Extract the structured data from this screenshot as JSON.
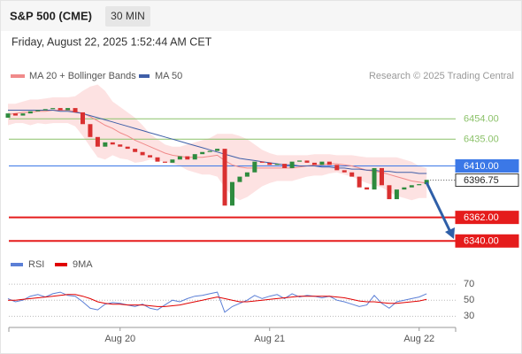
{
  "chart_data": {
    "type": "candlestick",
    "title": "S&P 500 (CME)",
    "interval": "30 MIN",
    "subtitle": "Friday, August 22, 2025 1:52:44 AM CET",
    "source": "Research © 2025 Trading Central",
    "categories": [
      null,
      null,
      null,
      null,
      null,
      null,
      null,
      null,
      null,
      null,
      null,
      null,
      null,
      null,
      null,
      "Aug 20",
      null,
      null,
      null,
      null,
      null,
      null,
      null,
      null,
      null,
      null,
      null,
      null,
      null,
      null,
      null,
      null,
      null,
      null,
      null,
      "Aug 21",
      null,
      null,
      null,
      null,
      null,
      null,
      null,
      null,
      null,
      null,
      null,
      null,
      null,
      null,
      null,
      null,
      null,
      null,
      null,
      "Aug 22",
      null
    ],
    "open": [
      6455,
      6459,
      6457,
      6459,
      6461,
      6462,
      6463,
      6464,
      6462,
      6464,
      6460,
      6449,
      6437,
      6428,
      6432,
      6430,
      6428,
      6426,
      6423,
      6420,
      6418,
      6414,
      6413,
      6416,
      6419,
      6416,
      6421,
      6423,
      6424,
      6426,
      6373,
      6395,
      6400,
      6404,
      6414,
      6413,
      6411,
      6412,
      6408,
      6414,
      6415,
      6413,
      6411,
      6414,
      6411,
      6406,
      6404,
      6400,
      6390,
      6388,
      6408,
      6392,
      6379,
      6388,
      6390,
      6392,
      6393
    ],
    "close": [
      6459,
      6457,
      6459,
      6461,
      6462,
      6463,
      6464,
      6462,
      6464,
      6460,
      6449,
      6437,
      6428,
      6432,
      6430,
      6428,
      6426,
      6423,
      6420,
      6418,
      6414,
      6413,
      6416,
      6419,
      6416,
      6421,
      6423,
      6424,
      6426,
      6373,
      6395,
      6400,
      6404,
      6414,
      6413,
      6411,
      6412,
      6408,
      6414,
      6415,
      6413,
      6411,
      6414,
      6411,
      6406,
      6404,
      6400,
      6390,
      6388,
      6408,
      6392,
      6379,
      6388,
      6390,
      6392,
      6393,
      6397
    ],
    "up_color": "#2e8b3e",
    "down_color": "#d93030",
    "series": [
      {
        "name": "MA 20 + Bollinger Bands",
        "color": "#f08a8a",
        "band_color": "#fde2e2",
        "values": [
          6458,
          6459,
          6460,
          6460,
          6461,
          6461,
          6462,
          6462,
          6462,
          6461,
          6459,
          6456,
          6452,
          6448,
          6445,
          6441,
          6438,
          6434,
          6431,
          6428,
          6425,
          6422,
          6420,
          6419,
          6418,
          6418,
          6418,
          6419,
          6420,
          6415,
          6411,
          6409,
          6408,
          6408,
          6408,
          6408,
          6408,
          6408,
          6408,
          6409,
          6410,
          6411,
          6411,
          6412,
          6412,
          6411,
          6410,
          6408,
          6406,
          6405,
          6404,
          6402,
          6400,
          6398,
          6396,
          6395,
          6394
        ],
        "upper": [
          6468,
          6468,
          6470,
          6472,
          6472,
          6473,
          6474,
          6474,
          6474,
          6475,
          6480,
          6484,
          6486,
          6480,
          6470,
          6465,
          6460,
          6455,
          6448,
          6440,
          6435,
          6430,
          6428,
          6428,
          6430,
          6432,
          6434,
          6436,
          6440,
          6440,
          6440,
          6438,
          6435,
          6430,
          6425,
          6422,
          6420,
          6420,
          6420,
          6420,
          6420,
          6421,
          6421,
          6421,
          6420,
          6420,
          6420,
          6419,
          6418,
          6418,
          6418,
          6418,
          6418,
          6416,
          6414,
          6410,
          6408
        ],
        "lower": [
          6448,
          6450,
          6450,
          6448,
          6450,
          6449,
          6450,
          6450,
          6450,
          6447,
          6438,
          6428,
          6418,
          6416,
          6420,
          6417,
          6416,
          6413,
          6414,
          6416,
          6415,
          6414,
          6412,
          6410,
          6406,
          6404,
          6402,
          6402,
          6400,
          6390,
          6382,
          6378,
          6381,
          6386,
          6391,
          6394,
          6396,
          6396,
          6396,
          6398,
          6400,
          6401,
          6401,
          6403,
          6404,
          6402,
          6400,
          6397,
          6394,
          6392,
          6390,
          6386,
          6382,
          6380,
          6378,
          6380,
          6380
        ]
      },
      {
        "name": "MA 50",
        "color": "#3f5fa8",
        "values": [
          6462,
          6462,
          6462,
          6462,
          6462,
          6462,
          6462,
          6461,
          6461,
          6460,
          6459,
          6457,
          6455,
          6453,
          6451,
          6449,
          6447,
          6445,
          6443,
          6441,
          6439,
          6437,
          6435,
          6433,
          6431,
          6429,
          6427,
          6425,
          6423,
          6421,
          6419,
          6417,
          6416,
          6415,
          6414,
          6413,
          6412,
          6411,
          6411,
          6410,
          6410,
          6410,
          6409,
          6409,
          6408,
          6408,
          6407,
          6407,
          6406,
          6406,
          6405,
          6405,
          6404,
          6404,
          6404,
          6403,
          6403
        ]
      }
    ],
    "levels": [
      {
        "value": 6454,
        "label": "6454.00",
        "color": "#8cc26a",
        "box": false
      },
      {
        "value": 6435,
        "label": "6435.00",
        "color": "#8cc26a",
        "box": false
      },
      {
        "value": 6410,
        "label": "6410.00",
        "color": "#3b78e7",
        "box": true
      },
      {
        "value": 6396.75,
        "label": "6396.75",
        "color": "#333333",
        "box": true,
        "current": true
      },
      {
        "value": 6362,
        "label": "6362.00",
        "color": "#e51c1c",
        "box": true
      },
      {
        "value": 6340,
        "label": "6340.00",
        "color": "#e51c1c",
        "box": true
      }
    ],
    "ylim": [
      6329.5,
      6490.5
    ],
    "indicator": {
      "type": "line",
      "ylim": [
        16,
        80
      ],
      "yticks": [
        30,
        50,
        70
      ],
      "series": [
        {
          "name": "RSI",
          "color": "#5b7fd6",
          "values": [
            52,
            48,
            50,
            55,
            57,
            54,
            58,
            60,
            56,
            55,
            48,
            40,
            38,
            45,
            47,
            46,
            44,
            42,
            45,
            40,
            38,
            44,
            50,
            48,
            52,
            55,
            56,
            58,
            60,
            35,
            42,
            46,
            50,
            56,
            52,
            55,
            57,
            52,
            58,
            54,
            56,
            55,
            53,
            55,
            50,
            48,
            45,
            42,
            44,
            56,
            46,
            40,
            48,
            50,
            52,
            54,
            58
          ]
        },
        {
          "name": "9MA",
          "color": "#e00000",
          "values": [
            50,
            50,
            51,
            52,
            53,
            54,
            55,
            56,
            57,
            57,
            55,
            52,
            48,
            46,
            45,
            45,
            44,
            44,
            44,
            43,
            42,
            42,
            43,
            44,
            46,
            48,
            50,
            52,
            54,
            52,
            50,
            48,
            48,
            49,
            50,
            51,
            52,
            53,
            54,
            55,
            55,
            55,
            55,
            55,
            54,
            53,
            51,
            49,
            48,
            48,
            47,
            46,
            46,
            47,
            48,
            49,
            51
          ]
        }
      ]
    }
  }
}
